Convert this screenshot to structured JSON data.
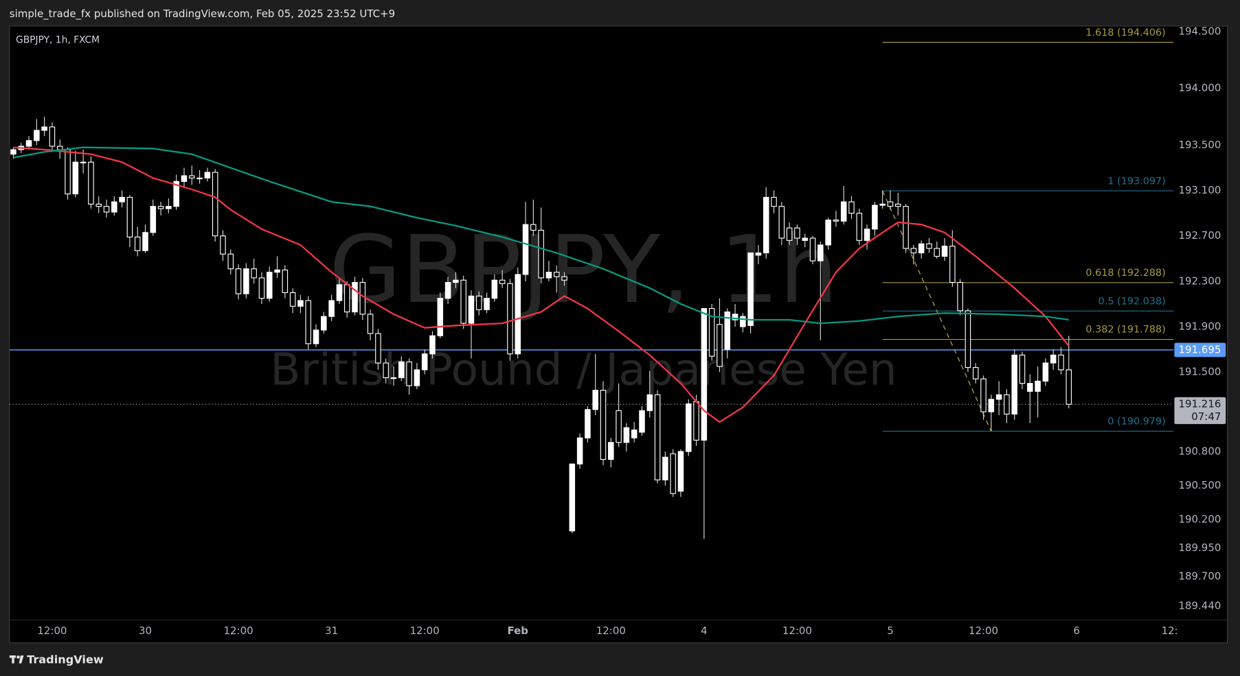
{
  "header": "simple_trade_fx published on TradingView.com, Feb 05, 2025 23:52 UTC+9",
  "footer_logo": "TradingView",
  "chart_data": {
    "type": "candlestick",
    "symbol_label": "GBPJPY, 1h, FXCM",
    "watermark_symbol": "GBPJPY, 1h",
    "watermark_description": "British Pound / Japanese Yen",
    "categories": [
      null,
      null,
      null,
      null,
      null,
      "12:00",
      null,
      null,
      null,
      null,
      null,
      null,
      null,
      null,
      null,
      null,
      null,
      "30",
      null,
      null,
      null,
      null,
      null,
      null,
      null,
      null,
      null,
      null,
      null,
      "12:00",
      null,
      null,
      null,
      null,
      null,
      null,
      null,
      null,
      null,
      null,
      null,
      "31",
      null,
      null,
      null,
      null,
      null,
      null,
      null,
      null,
      null,
      null,
      null,
      "12:00",
      null,
      null,
      null,
      null,
      null,
      null,
      null,
      null,
      null,
      null,
      null,
      "Feb",
      null,
      null,
      null,
      null,
      null,
      null,
      null,
      null,
      null,
      null,
      null,
      "12:00",
      null,
      null,
      null,
      null,
      null,
      null,
      null,
      null,
      null,
      null,
      null,
      "4",
      null,
      null,
      null,
      null,
      null,
      null,
      null,
      null,
      null,
      null,
      null,
      "12:00",
      null,
      null,
      null,
      null,
      null,
      null,
      null,
      null,
      null,
      null,
      null,
      "5",
      null,
      null,
      null,
      null,
      null,
      null,
      null,
      null,
      null,
      null,
      null,
      "12:00",
      null,
      null,
      null,
      null,
      null,
      null,
      null,
      null,
      null,
      null,
      null,
      "6",
      null,
      null,
      null,
      null,
      null,
      null,
      null,
      null,
      null,
      null,
      null,
      "12:"
    ],
    "candles": [
      [
        193.42,
        193.48,
        193.38,
        193.46
      ],
      [
        193.46,
        193.52,
        193.43,
        193.49
      ],
      [
        193.49,
        193.58,
        193.46,
        193.54
      ],
      [
        193.54,
        193.73,
        193.5,
        193.63
      ],
      [
        193.63,
        193.75,
        193.58,
        193.66
      ],
      [
        193.66,
        193.7,
        193.44,
        193.49
      ],
      [
        193.49,
        193.55,
        193.38,
        193.46
      ],
      [
        193.46,
        193.48,
        193.02,
        193.07
      ],
      [
        193.07,
        193.45,
        193.04,
        193.35
      ],
      [
        193.35,
        193.46,
        193.25,
        193.35
      ],
      [
        193.35,
        193.4,
        192.94,
        192.98
      ],
      [
        192.98,
        193.05,
        192.9,
        192.96
      ],
      [
        192.96,
        193.02,
        192.86,
        192.91
      ],
      [
        192.91,
        193.05,
        192.88,
        193.0
      ],
      [
        193.0,
        193.1,
        192.95,
        193.04
      ],
      [
        193.04,
        193.06,
        192.6,
        192.69
      ],
      [
        192.69,
        192.78,
        192.52,
        192.57
      ],
      [
        192.57,
        192.8,
        192.55,
        192.73
      ],
      [
        192.73,
        193.02,
        192.7,
        192.96
      ],
      [
        192.96,
        193.0,
        192.88,
        192.94
      ],
      [
        192.94,
        193.03,
        192.9,
        192.96
      ],
      [
        192.96,
        193.24,
        192.93,
        193.18
      ],
      [
        193.18,
        193.3,
        193.12,
        193.23
      ],
      [
        193.23,
        193.32,
        193.15,
        193.21
      ],
      [
        193.21,
        193.28,
        193.16,
        193.21
      ],
      [
        193.21,
        193.3,
        193.18,
        193.26
      ],
      [
        193.26,
        193.29,
        192.65,
        192.7
      ],
      [
        192.7,
        192.75,
        192.48,
        192.54
      ],
      [
        192.54,
        192.58,
        192.36,
        192.41
      ],
      [
        192.41,
        192.45,
        192.14,
        192.19
      ],
      [
        192.19,
        192.46,
        192.15,
        192.41
      ],
      [
        192.41,
        192.5,
        192.28,
        192.33
      ],
      [
        192.33,
        192.38,
        192.1,
        192.15
      ],
      [
        192.15,
        192.43,
        192.12,
        192.38
      ],
      [
        192.38,
        192.52,
        192.33,
        192.4
      ],
      [
        192.4,
        192.44,
        192.15,
        192.2
      ],
      [
        192.2,
        192.24,
        192.02,
        192.08
      ],
      [
        192.08,
        192.18,
        192.02,
        192.13
      ],
      [
        192.13,
        192.17,
        191.7,
        191.75
      ],
      [
        191.75,
        191.92,
        191.72,
        191.87
      ],
      [
        191.87,
        192.03,
        191.84,
        191.99
      ],
      [
        191.99,
        192.18,
        191.95,
        192.13
      ],
      [
        192.13,
        192.32,
        192.1,
        192.27
      ],
      [
        192.27,
        192.3,
        191.98,
        192.03
      ],
      [
        192.03,
        192.34,
        192.0,
        192.29
      ],
      [
        192.29,
        192.33,
        191.96,
        192.01
      ],
      [
        192.01,
        192.05,
        191.78,
        191.84
      ],
      [
        191.84,
        191.88,
        191.52,
        191.58
      ],
      [
        191.58,
        191.62,
        191.4,
        191.45
      ],
      [
        191.45,
        191.55,
        191.38,
        191.45
      ],
      [
        191.45,
        191.64,
        191.42,
        191.59
      ],
      [
        191.59,
        191.62,
        191.3,
        191.38
      ],
      [
        191.38,
        191.58,
        191.35,
        191.52
      ],
      [
        191.52,
        191.7,
        191.48,
        191.66
      ],
      [
        191.66,
        191.86,
        191.62,
        191.82
      ],
      [
        191.82,
        192.2,
        191.8,
        192.15
      ],
      [
        192.15,
        192.34,
        192.1,
        192.29
      ],
      [
        192.29,
        192.38,
        192.24,
        192.31
      ],
      [
        192.31,
        192.35,
        191.88,
        191.93
      ],
      [
        191.93,
        192.22,
        191.62,
        192.17
      ],
      [
        192.17,
        192.21,
        192.0,
        192.05
      ],
      [
        192.05,
        192.2,
        192.02,
        192.15
      ],
      [
        192.15,
        192.36,
        192.12,
        192.31
      ],
      [
        192.31,
        192.4,
        192.24,
        192.28
      ],
      [
        192.28,
        192.32,
        191.6,
        191.66
      ],
      [
        191.66,
        192.42,
        191.62,
        192.36
      ],
      [
        192.36,
        193.0,
        192.3,
        192.8
      ],
      [
        192.8,
        193.02,
        192.7,
        192.75
      ],
      [
        192.75,
        192.95,
        192.28,
        192.33
      ],
      [
        192.33,
        192.48,
        192.3,
        192.38
      ],
      [
        192.38,
        192.44,
        192.2,
        192.34
      ],
      [
        192.34,
        192.38,
        192.26,
        192.31
      ],
      [
        190.1,
        190.69,
        190.08,
        190.69
      ],
      [
        190.69,
        190.96,
        190.65,
        190.92
      ],
      [
        190.92,
        191.2,
        190.88,
        191.17
      ],
      [
        191.17,
        191.66,
        191.12,
        191.34
      ],
      [
        191.34,
        191.42,
        190.68,
        190.73
      ],
      [
        190.73,
        190.92,
        190.66,
        190.88
      ],
      [
        191.16,
        191.4,
        190.84,
        190.88
      ],
      [
        190.88,
        191.05,
        190.8,
        191.01
      ],
      [
        190.92,
        191.06,
        190.88,
        190.99
      ],
      [
        190.97,
        191.2,
        190.94,
        191.16
      ],
      [
        191.16,
        191.51,
        191.1,
        191.3
      ],
      [
        191.3,
        191.34,
        190.52,
        190.55
      ],
      [
        190.55,
        190.8,
        190.5,
        190.75
      ],
      [
        190.78,
        190.82,
        190.4,
        190.43
      ],
      [
        190.45,
        190.82,
        190.4,
        190.8
      ],
      [
        190.8,
        191.26,
        190.76,
        191.22
      ],
      [
        191.24,
        191.3,
        190.85,
        190.9
      ],
      [
        190.9,
        192.06,
        190.03,
        192.06
      ],
      [
        192.06,
        192.1,
        191.6,
        191.64
      ],
      [
        191.92,
        192.15,
        191.5,
        191.55
      ],
      [
        191.7,
        192.06,
        191.62,
        192.03
      ],
      [
        191.96,
        192.1,
        191.9,
        192.01
      ],
      [
        191.9,
        192.02,
        191.85,
        191.99
      ],
      [
        191.91,
        192.55,
        191.84,
        192.55
      ],
      [
        192.53,
        192.62,
        192.45,
        192.55
      ],
      [
        192.55,
        193.13,
        192.5,
        193.04
      ],
      [
        193.04,
        193.1,
        192.9,
        192.96
      ],
      [
        192.96,
        193.0,
        192.62,
        192.68
      ],
      [
        192.77,
        192.82,
        192.62,
        192.66
      ],
      [
        192.77,
        192.8,
        192.62,
        192.68
      ],
      [
        192.66,
        192.72,
        192.6,
        192.68
      ],
      [
        192.68,
        192.7,
        192.45,
        192.48
      ],
      [
        192.48,
        192.65,
        191.78,
        192.62
      ],
      [
        192.62,
        192.86,
        192.58,
        192.84
      ],
      [
        192.84,
        192.92,
        192.78,
        192.83
      ],
      [
        192.83,
        193.14,
        192.8,
        193.0
      ],
      [
        193.0,
        193.05,
        192.85,
        192.9
      ],
      [
        192.9,
        192.94,
        192.62,
        192.66
      ],
      [
        192.66,
        192.8,
        192.58,
        192.76
      ],
      [
        192.76,
        193.0,
        192.7,
        192.97
      ],
      [
        192.97,
        193.1,
        192.94,
        192.98
      ],
      [
        193.0,
        193.1,
        192.93,
        192.96
      ],
      [
        192.98,
        193.08,
        192.88,
        192.96
      ],
      [
        192.96,
        192.98,
        192.55,
        192.59
      ],
      [
        192.59,
        192.62,
        192.45,
        192.55
      ],
      [
        192.55,
        192.66,
        192.5,
        192.63
      ],
      [
        192.63,
        192.68,
        192.55,
        192.59
      ],
      [
        192.59,
        192.65,
        192.5,
        192.52
      ],
      [
        192.52,
        192.68,
        192.48,
        192.61
      ],
      [
        192.61,
        192.75,
        192.25,
        192.29
      ],
      [
        192.29,
        192.32,
        192.0,
        192.04
      ],
      [
        192.04,
        192.06,
        191.5,
        191.54
      ],
      [
        191.54,
        191.58,
        191.4,
        191.44
      ],
      [
        191.44,
        191.47,
        191.08,
        191.15
      ],
      [
        191.15,
        191.3,
        190.98,
        191.26
      ],
      [
        191.26,
        191.42,
        191.12,
        191.3
      ],
      [
        191.3,
        191.35,
        191.05,
        191.13
      ],
      [
        191.13,
        191.7,
        191.08,
        191.65
      ],
      [
        191.65,
        191.68,
        191.35,
        191.4
      ],
      [
        191.33,
        191.48,
        191.05,
        191.4
      ],
      [
        191.33,
        191.55,
        191.1,
        191.42
      ],
      [
        191.42,
        191.62,
        191.38,
        191.58
      ],
      [
        191.58,
        191.7,
        191.52,
        191.65
      ],
      [
        191.65,
        191.72,
        191.48,
        191.52
      ],
      [
        191.52,
        191.82,
        191.18,
        191.216
      ],
      null,
      null,
      null,
      null,
      null,
      null,
      null,
      null,
      null,
      null,
      null,
      null,
      null
    ],
    "up_color": "#ffffff",
    "down_color": "#000000",
    "wick_color": "#d9d9d9",
    "ylim": [
      189.316,
      194.549
    ],
    "yticks": [
      {
        "value": 194.5,
        "label": "194.500"
      },
      {
        "value": 194,
        "label": "194.000"
      },
      {
        "value": 193.5,
        "label": "193.500"
      },
      {
        "value": 193.1,
        "label": "193.100"
      },
      {
        "value": 192.7,
        "label": "192.700"
      },
      {
        "value": 192.3,
        "label": "192.300"
      },
      {
        "value": 191.9,
        "label": "191.900"
      },
      {
        "value": 191.5,
        "label": "191.500"
      },
      {
        "value": 190.8,
        "label": "190.800"
      },
      {
        "value": 190.5,
        "label": "190.500"
      },
      {
        "value": 190.2,
        "label": "190.200"
      },
      {
        "value": 189.95,
        "label": "189.950"
      },
      {
        "value": 189.7,
        "label": "189.700"
      },
      {
        "value": 189.44,
        "label": "189.440"
      }
    ],
    "grid": false,
    "series": [
      {
        "type": "line",
        "color": "#f23645",
        "x": [
          0,
          4,
          10,
          14,
          18,
          23,
          26,
          28,
          32,
          37,
          41,
          45,
          49,
          53,
          57,
          63,
          68,
          71,
          74,
          78,
          82,
          86,
          89,
          91,
          94,
          98,
          102,
          106,
          109,
          112,
          114,
          117,
          120,
          124,
          129,
          133,
          136
        ],
        "values": [
          193.48,
          193.46,
          193.42,
          193.35,
          193.21,
          193.11,
          193.04,
          192.93,
          192.76,
          192.62,
          192.38,
          192.17,
          192.01,
          191.89,
          191.91,
          191.93,
          192.03,
          192.17,
          192.06,
          191.86,
          191.65,
          191.4,
          191.16,
          191.06,
          191.19,
          191.47,
          191.93,
          192.38,
          192.59,
          192.73,
          192.82,
          192.8,
          192.73,
          192.52,
          192.24,
          191.99,
          191.73
        ]
      },
      {
        "type": "line",
        "color": "#089981",
        "x": [
          0,
          4,
          9,
          18,
          23,
          28,
          33,
          37,
          41,
          46,
          52,
          57,
          63,
          70,
          76,
          82,
          86,
          90,
          95,
          100,
          104,
          109,
          114,
          120,
          127,
          133,
          136
        ],
        "values": [
          193.39,
          193.44,
          193.48,
          193.47,
          193.42,
          193.3,
          193.18,
          193.09,
          193.0,
          192.96,
          192.86,
          192.79,
          192.69,
          192.55,
          192.41,
          192.24,
          192.1,
          191.99,
          191.96,
          191.96,
          191.93,
          191.95,
          191.99,
          192.02,
          192.01,
          191.99,
          191.96
        ]
      }
    ],
    "price_lines": [
      {
        "value": 191.695,
        "label": "191.695",
        "color": "#5b9cf6",
        "style": "solid"
      },
      {
        "value": 191.216,
        "label": "191.216",
        "countdown": "07:47",
        "color": "#b2b5be",
        "style": "dotted"
      }
    ],
    "fib": {
      "x": [
        112,
        126
      ],
      "anchor_values": [
        193.097,
        190.979
      ],
      "color": "#a89a3c",
      "levels": [
        {
          "label": "1.618 (194.406)",
          "value": 194.406,
          "color": "#a89a3c"
        },
        {
          "label": "1 (193.097)",
          "value": 193.097,
          "color": "#22718f"
        },
        {
          "label": "0.618 (192.288)",
          "value": 192.288,
          "color": "#a89a3c"
        },
        {
          "label": "0.5 (192.038)",
          "value": 192.038,
          "color": "#22718f"
        },
        {
          "label": "0.382 (191.788)",
          "value": 191.788,
          "color": "#a89a3c"
        },
        {
          "label": "0 (190.979)",
          "value": 190.979,
          "color": "#22718f"
        }
      ]
    }
  }
}
